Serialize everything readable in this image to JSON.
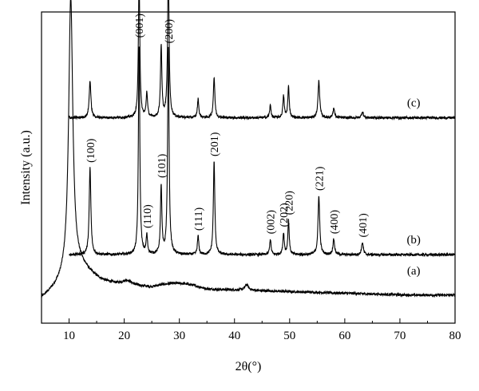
{
  "chart_data": {
    "type": "line",
    "title": "",
    "xlabel": "2θ(°)",
    "ylabel": "Intensity (a.u.)",
    "xlim": [
      5,
      80
    ],
    "xticks": [
      10,
      20,
      30,
      40,
      50,
      60,
      70,
      80
    ],
    "yticks_shown": false,
    "grid": false,
    "legend": "none",
    "line_color": "#000000",
    "series": [
      {
        "name": "(a)",
        "x_range": [
          5,
          80
        ],
        "baseline": 0.12,
        "peaks": [
          {
            "x": 10.3,
            "height": 0.88,
            "width": 0.45
          },
          {
            "x": 11.8,
            "height": 0.06,
            "width": 3.0
          },
          {
            "x": 20.5,
            "height": 0.015,
            "width": 1.0
          },
          {
            "x": 42.2,
            "height": 0.018,
            "width": 0.4
          }
        ]
      },
      {
        "name": "(b)",
        "x_range": [
          10,
          80
        ],
        "baseline": 0.22,
        "peaks": [
          {
            "x": 13.8,
            "height": 0.28,
            "width": 0.18,
            "label": "(100)"
          },
          {
            "x": 22.7,
            "height": 0.68,
            "width": 0.15,
            "label": "(001)"
          },
          {
            "x": 24.1,
            "height": 0.06,
            "width": 0.15,
            "label": "(110)"
          },
          {
            "x": 26.7,
            "height": 0.22,
            "width": 0.15,
            "label": "(101)"
          },
          {
            "x": 28.0,
            "height": 0.66,
            "width": 0.16,
            "label": "(200)"
          },
          {
            "x": 33.4,
            "height": 0.06,
            "width": 0.15,
            "label": "(111)"
          },
          {
            "x": 36.3,
            "height": 0.3,
            "width": 0.16,
            "label": "(201)"
          },
          {
            "x": 46.5,
            "height": 0.05,
            "width": 0.15,
            "label": "(002)"
          },
          {
            "x": 48.9,
            "height": 0.07,
            "width": 0.15,
            "label": "(202)"
          },
          {
            "x": 49.8,
            "height": 0.11,
            "width": 0.15,
            "label": "(220)"
          },
          {
            "x": 55.3,
            "height": 0.19,
            "width": 0.18,
            "label": "(221)"
          },
          {
            "x": 58.0,
            "height": 0.05,
            "width": 0.18,
            "label": "(400)"
          },
          {
            "x": 63.2,
            "height": 0.04,
            "width": 0.18,
            "label": "(401)"
          }
        ]
      },
      {
        "name": "(c)",
        "x_range": [
          10,
          80
        ],
        "baseline": 0.66,
        "peaks": [
          {
            "x": 13.8,
            "height": 0.12,
            "width": 0.18
          },
          {
            "x": 22.7,
            "height": 0.46,
            "width": 0.15
          },
          {
            "x": 24.1,
            "height": 0.08,
            "width": 0.15
          },
          {
            "x": 26.7,
            "height": 0.23,
            "width": 0.15
          },
          {
            "x": 28.0,
            "height": 0.48,
            "width": 0.16
          },
          {
            "x": 33.4,
            "height": 0.06,
            "width": 0.15
          },
          {
            "x": 36.3,
            "height": 0.13,
            "width": 0.16
          },
          {
            "x": 46.5,
            "height": 0.04,
            "width": 0.15
          },
          {
            "x": 48.9,
            "height": 0.07,
            "width": 0.15
          },
          {
            "x": 49.8,
            "height": 0.1,
            "width": 0.15
          },
          {
            "x": 55.3,
            "height": 0.12,
            "width": 0.18
          },
          {
            "x": 58.0,
            "height": 0.03,
            "width": 0.18
          },
          {
            "x": 63.2,
            "height": 0.02,
            "width": 0.18
          }
        ]
      }
    ],
    "annotations": [
      {
        "text": "(001)",
        "series": "(a)",
        "x": 10.3
      }
    ]
  }
}
